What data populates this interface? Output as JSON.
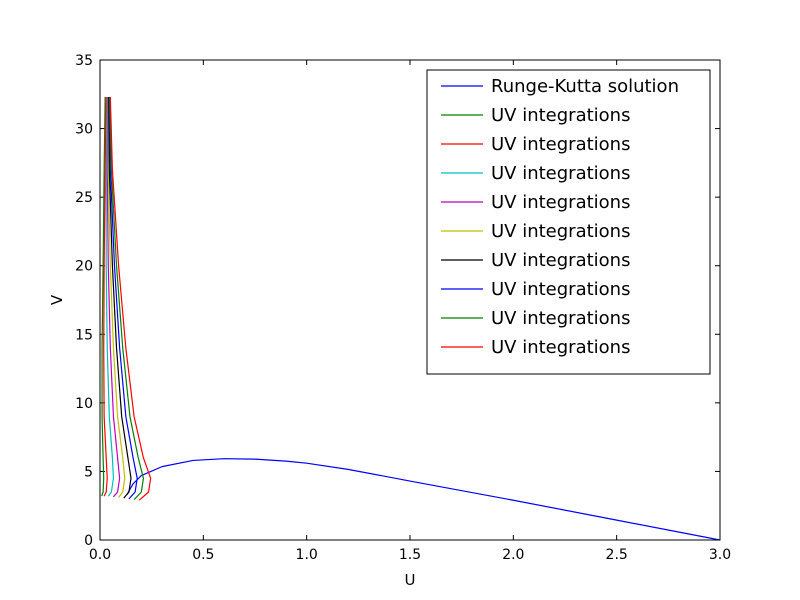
{
  "chart_data": {
    "type": "line",
    "xlabel": "U",
    "ylabel": "V",
    "xlim": [
      0,
      3.0
    ],
    "ylim": [
      0,
      35
    ],
    "xticks": [
      "0.0",
      "0.5",
      "1.0",
      "1.5",
      "2.0",
      "2.5",
      "3.0"
    ],
    "yticks": [
      "0",
      "5",
      "10",
      "15",
      "20",
      "25",
      "30",
      "35"
    ],
    "grid": false,
    "legend_position": "top-right",
    "series": [
      {
        "name": "Runge-Kutta solution",
        "color": "#0000ff",
        "points": [
          [
            0.13,
            3.3
          ],
          [
            0.16,
            4.1
          ],
          [
            0.2,
            4.7
          ],
          [
            0.3,
            5.35
          ],
          [
            0.45,
            5.8
          ],
          [
            0.6,
            5.93
          ],
          [
            0.75,
            5.9
          ],
          [
            0.9,
            5.75
          ],
          [
            1.0,
            5.6
          ],
          [
            1.2,
            5.15
          ],
          [
            1.5,
            4.3
          ],
          [
            2.0,
            2.9
          ],
          [
            2.5,
            1.45
          ],
          [
            3.0,
            0.0
          ]
        ]
      },
      {
        "name": "UV integrations",
        "color": "#008000",
        "points": [
          [
            0.025,
            32.3
          ],
          [
            0.02,
            27
          ],
          [
            0.015,
            20
          ],
          [
            0.01,
            14
          ],
          [
            0.01,
            9
          ],
          [
            0.015,
            6
          ],
          [
            0.018,
            4.5
          ],
          [
            0.015,
            3.5
          ],
          [
            0.008,
            3.2
          ]
        ]
      },
      {
        "name": "UV integrations",
        "color": "#ff0000",
        "points": [
          [
            0.03,
            32.3
          ],
          [
            0.025,
            27
          ],
          [
            0.02,
            20
          ],
          [
            0.018,
            14
          ],
          [
            0.02,
            9
          ],
          [
            0.03,
            6
          ],
          [
            0.035,
            4.5
          ],
          [
            0.03,
            3.5
          ],
          [
            0.02,
            3.2
          ]
        ]
      },
      {
        "name": "UV integrations",
        "color": "#00bfbf",
        "points": [
          [
            0.035,
            32.3
          ],
          [
            0.03,
            27
          ],
          [
            0.03,
            20
          ],
          [
            0.035,
            14
          ],
          [
            0.045,
            9
          ],
          [
            0.06,
            6
          ],
          [
            0.065,
            4.5
          ],
          [
            0.055,
            3.5
          ],
          [
            0.04,
            3.2
          ]
        ]
      },
      {
        "name": "UV integrations",
        "color": "#bf00bf",
        "points": [
          [
            0.037,
            32.3
          ],
          [
            0.035,
            27
          ],
          [
            0.04,
            20
          ],
          [
            0.05,
            14
          ],
          [
            0.065,
            9
          ],
          [
            0.085,
            6
          ],
          [
            0.095,
            4.5
          ],
          [
            0.085,
            3.5
          ],
          [
            0.065,
            3.15
          ]
        ]
      },
      {
        "name": "UV integrations",
        "color": "#bfbf00",
        "points": [
          [
            0.04,
            32.3
          ],
          [
            0.04,
            27
          ],
          [
            0.05,
            20
          ],
          [
            0.065,
            14
          ],
          [
            0.085,
            9
          ],
          [
            0.11,
            6
          ],
          [
            0.12,
            4.5
          ],
          [
            0.11,
            3.5
          ],
          [
            0.09,
            3.1
          ]
        ]
      },
      {
        "name": "UV integrations",
        "color": "#000000",
        "points": [
          [
            0.042,
            32.3
          ],
          [
            0.045,
            27
          ],
          [
            0.06,
            20
          ],
          [
            0.08,
            14
          ],
          [
            0.105,
            9
          ],
          [
            0.135,
            6
          ],
          [
            0.15,
            4.5
          ],
          [
            0.14,
            3.5
          ],
          [
            0.115,
            3.05
          ]
        ]
      },
      {
        "name": "UV integrations",
        "color": "#0000ff",
        "points": [
          [
            0.045,
            32.3
          ],
          [
            0.05,
            27
          ],
          [
            0.07,
            20
          ],
          [
            0.095,
            14
          ],
          [
            0.125,
            9
          ],
          [
            0.16,
            6
          ],
          [
            0.18,
            4.5
          ],
          [
            0.17,
            3.5
          ],
          [
            0.14,
            3.0
          ]
        ]
      },
      {
        "name": "UV integrations",
        "color": "#008000",
        "points": [
          [
            0.047,
            32.3
          ],
          [
            0.055,
            27
          ],
          [
            0.08,
            20
          ],
          [
            0.11,
            14
          ],
          [
            0.145,
            9
          ],
          [
            0.185,
            6
          ],
          [
            0.21,
            4.5
          ],
          [
            0.2,
            3.5
          ],
          [
            0.165,
            2.95
          ]
        ]
      },
      {
        "name": "UV integrations",
        "color": "#ff0000",
        "points": [
          [
            0.05,
            32.3
          ],
          [
            0.06,
            27
          ],
          [
            0.09,
            20
          ],
          [
            0.125,
            14
          ],
          [
            0.165,
            9
          ],
          [
            0.21,
            6
          ],
          [
            0.245,
            4.5
          ],
          [
            0.235,
            3.5
          ],
          [
            0.19,
            2.9
          ]
        ]
      }
    ]
  }
}
